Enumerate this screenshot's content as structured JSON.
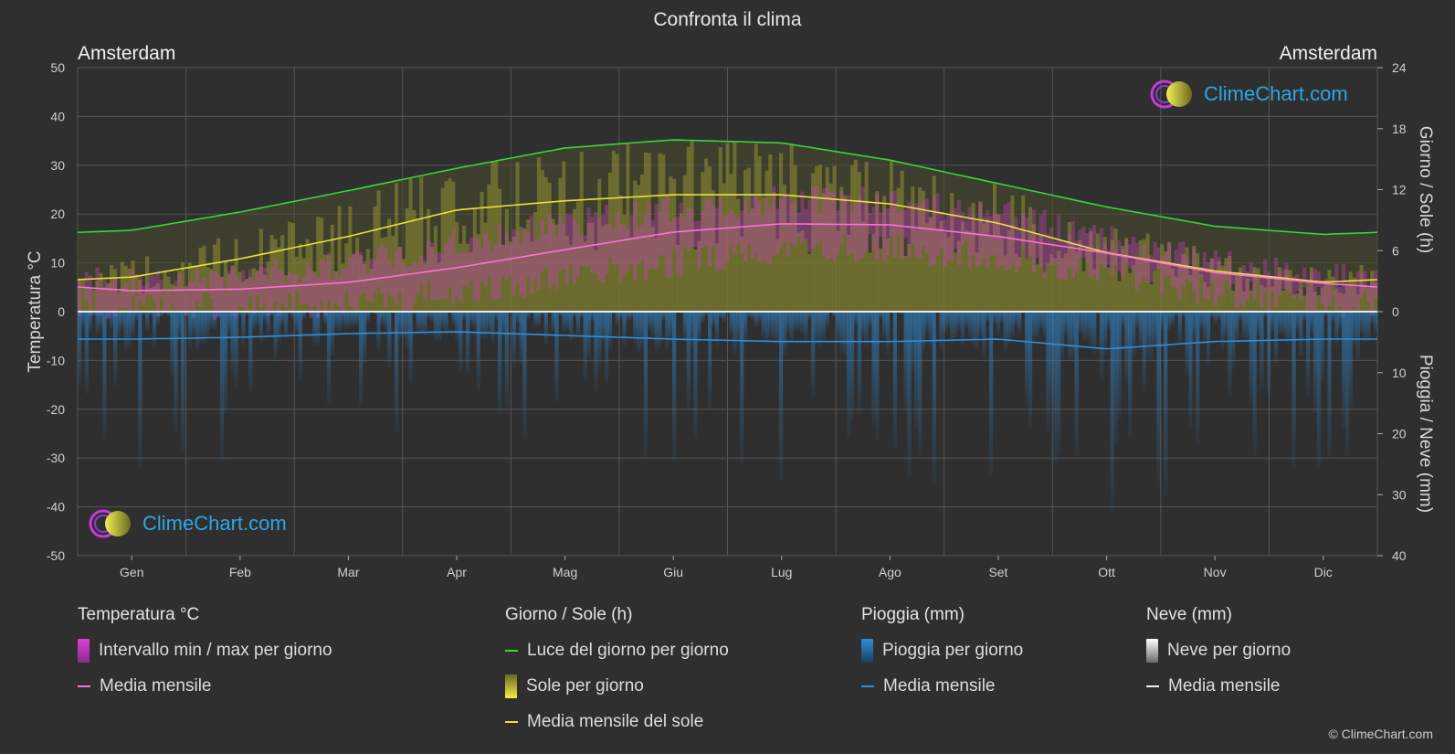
{
  "header": {
    "title": "Confronta il clima",
    "city_left": "Amsterdam",
    "city_right": "Amsterdam"
  },
  "brand": {
    "name": "ClimeChart.com",
    "copyright": "© ClimeChart.com"
  },
  "chart_data": {
    "type": "line",
    "x_ticks": [
      "Gen",
      "Feb",
      "Mar",
      "Apr",
      "Mag",
      "Giu",
      "Lug",
      "Ago",
      "Set",
      "Ott",
      "Nov",
      "Dic"
    ],
    "y_left": {
      "label": "Temperatura °C",
      "range": [
        -50,
        50
      ],
      "ticks": [
        50,
        40,
        30,
        20,
        10,
        0,
        -10,
        -20,
        -30,
        -40,
        -50
      ]
    },
    "y_right_top": {
      "label": "Giorno / Sole (h)",
      "range": [
        0,
        24
      ],
      "ticks": [
        24,
        18,
        12,
        6,
        0
      ]
    },
    "y_right_bottom": {
      "label": "Pioggia / Neve (mm)",
      "range": [
        0,
        40
      ],
      "ticks": [
        0,
        10,
        20,
        30,
        40
      ]
    },
    "grid": true,
    "series": [
      {
        "name": "Luce del giorno per giorno",
        "axis": "sun_hours",
        "color": "#3ad43a",
        "values": [
          8.0,
          9.8,
          11.9,
          14.1,
          16.1,
          16.9,
          16.6,
          14.9,
          12.6,
          10.3,
          8.4,
          7.6
        ]
      },
      {
        "name": "Media mensile del sole",
        "axis": "sun_hours",
        "color": "#e6e23a",
        "values": [
          3.4,
          5.2,
          7.4,
          10.0,
          10.9,
          11.5,
          11.5,
          10.6,
          8.7,
          5.8,
          4.0,
          2.9
        ]
      },
      {
        "name": "Media mensile",
        "group": "Temperatura °C",
        "axis": "temperature",
        "color": "#ff6fd8",
        "values": [
          4.3,
          4.6,
          6.0,
          9.0,
          12.7,
          16.3,
          18.0,
          17.8,
          15.4,
          12.0,
          8.0,
          5.8
        ]
      },
      {
        "name": "Media mensile",
        "group": "Pioggia (mm)",
        "axis": "precipitation",
        "color": "#2f8fdc",
        "values": [
          4.5,
          4.2,
          3.6,
          3.3,
          3.9,
          4.5,
          4.9,
          4.9,
          4.5,
          6.1,
          4.9,
          4.5
        ]
      },
      {
        "name": "Media mensile",
        "group": "Neve (mm)",
        "axis": "precipitation",
        "color": "#eeeeee",
        "values": [
          0,
          0,
          0,
          0,
          0,
          0,
          0,
          0,
          0,
          0,
          0,
          0
        ]
      }
    ],
    "ranges": {
      "temp_daily_max": [
        6,
        7,
        10,
        14,
        18,
        21,
        23,
        23,
        20,
        15,
        10,
        7
      ],
      "temp_daily_min": [
        1,
        1,
        2,
        4,
        7,
        10,
        13,
        13,
        11,
        8,
        4,
        2
      ]
    }
  },
  "legend": {
    "groups": [
      {
        "title": "Temperatura °C",
        "items": [
          {
            "label": "Intervallo min / max per giorno",
            "kind": "rect",
            "color": "#e040d8"
          },
          {
            "label": "Media mensile",
            "kind": "line",
            "color": "#ff6fd8"
          }
        ]
      },
      {
        "title": "Giorno / Sole (h)",
        "items": [
          {
            "label": "Luce del giorno per giorno",
            "kind": "line",
            "color": "#3ad43a"
          },
          {
            "label": "Sole per giorno",
            "kind": "rect",
            "color": "#d8d83a"
          },
          {
            "label": "Media mensile del sole",
            "kind": "line",
            "color": "#e6e23a"
          }
        ]
      },
      {
        "title": "Pioggia (mm)",
        "items": [
          {
            "label": "Pioggia per giorno",
            "kind": "rect",
            "color": "#2f8fdc"
          },
          {
            "label": "Media mensile",
            "kind": "line",
            "color": "#2f8fdc"
          }
        ]
      },
      {
        "title": "Neve (mm)",
        "items": [
          {
            "label": "Neve per giorno",
            "kind": "rect",
            "color": "#dddddd"
          },
          {
            "label": "Media mensile",
            "kind": "line",
            "color": "#eeeeee"
          }
        ]
      }
    ]
  }
}
